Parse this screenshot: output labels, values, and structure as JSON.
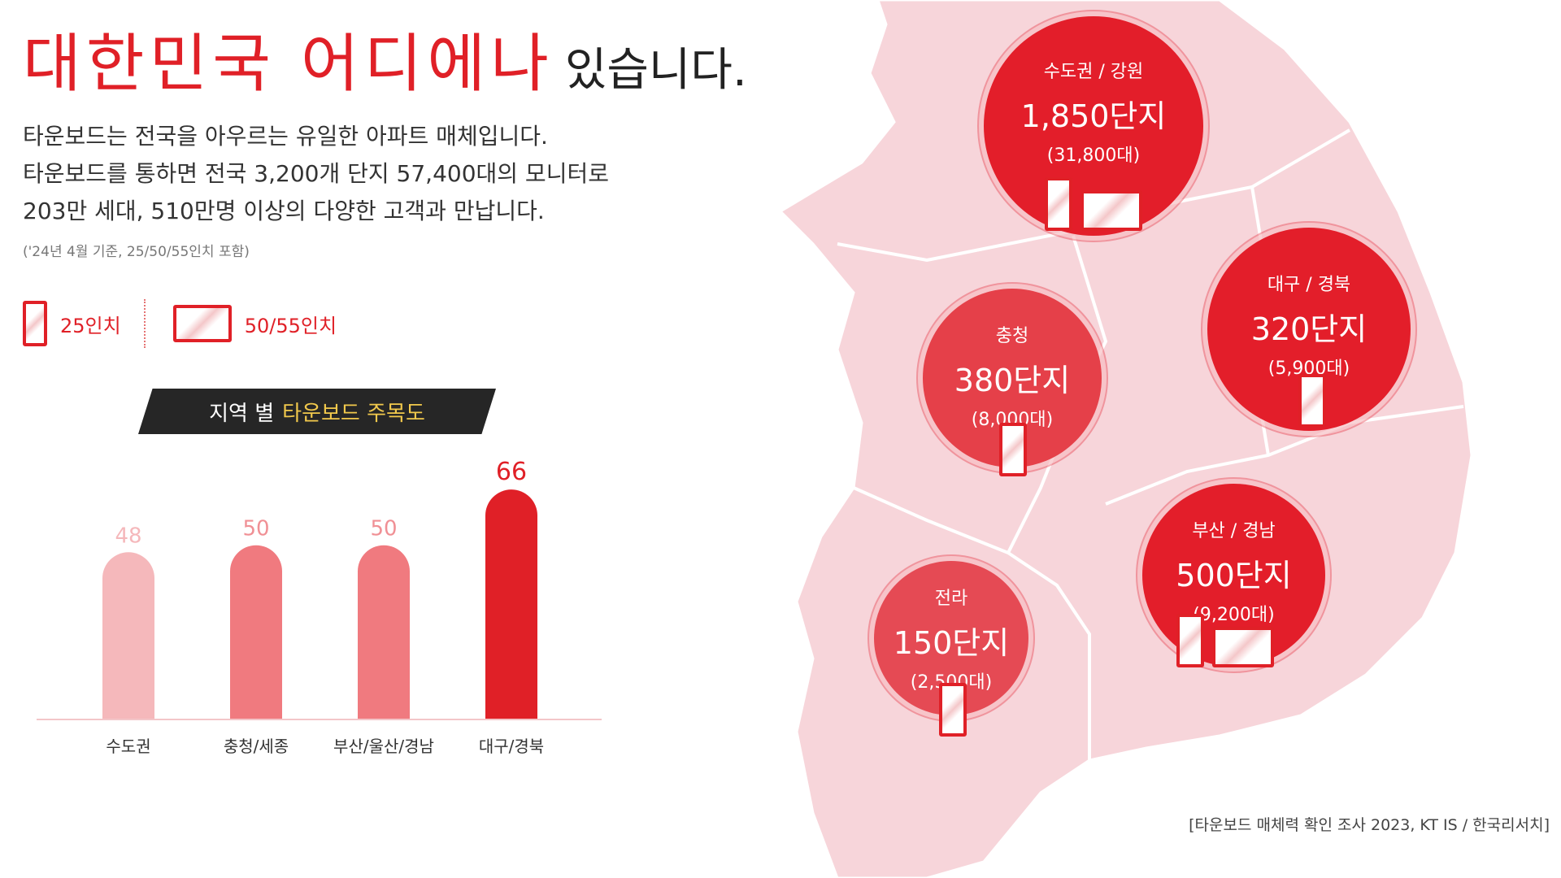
{
  "header": {
    "title_red": "대한민국 어디에나",
    "title_black": "있습니다.",
    "desc_lines": [
      "타운보드는 전국을 아우르는 유일한 아파트 매체입니다.",
      "타운보드를 통하면 전국 3,200개 단지 57,400대의 모니터로",
      "203만 세대, 510만명 이상의 다양한 고객과 만납니다."
    ],
    "note": "('24년 4월 기준, 25/50/55인치 포함)"
  },
  "legend": {
    "small_label": "25인치",
    "large_label": "50/55인치"
  },
  "chart_heading": {
    "prefix": "지역 별",
    "highlight": "타운보드 주목도"
  },
  "chart_data": {
    "type": "bar",
    "title": "지역 별 타운보드 주목도",
    "categories": [
      "수도권",
      "충청/세종",
      "부산/울산/경남",
      "대구/경북"
    ],
    "values": [
      48,
      50,
      50,
      66
    ],
    "colors": [
      "#f5b8bb",
      "#f07a7f",
      "#f07a7f",
      "#e02027"
    ],
    "label_colors": [
      "#f5b8bb",
      "#f09095",
      "#f09095",
      "#e02027"
    ],
    "xlabel": "",
    "ylabel": "",
    "ylim": [
      0,
      70
    ],
    "grid": false
  },
  "map": {
    "regions": [
      {
        "name": "수도권 / 강원",
        "count": "1,850단지",
        "units": "(31,800대)",
        "screens": [
          "tall",
          "wide"
        ],
        "color": "#e31e2a"
      },
      {
        "name": "충청",
        "count": "380단지",
        "units": "(8,000대)",
        "screens": [
          "tall"
        ],
        "color": "#e54049"
      },
      {
        "name": "대구 / 경북",
        "count": "320단지",
        "units": "(5,900대)",
        "screens": [
          "tall"
        ],
        "color": "#e31e2a"
      },
      {
        "name": "부산 / 경남",
        "count": "500단지",
        "units": "(9,200대)",
        "screens": [
          "tall",
          "wide"
        ],
        "color": "#e31e2a"
      },
      {
        "name": "전라",
        "count": "150단지",
        "units": "(2,500대)",
        "screens": [
          "tall"
        ],
        "color": "#e54a54"
      }
    ],
    "land_color": "#f7d5da",
    "border_color": "#ffffff"
  },
  "source": "[타운보드 매체력 확인 조사 2023, KT IS / 한국리서치]"
}
